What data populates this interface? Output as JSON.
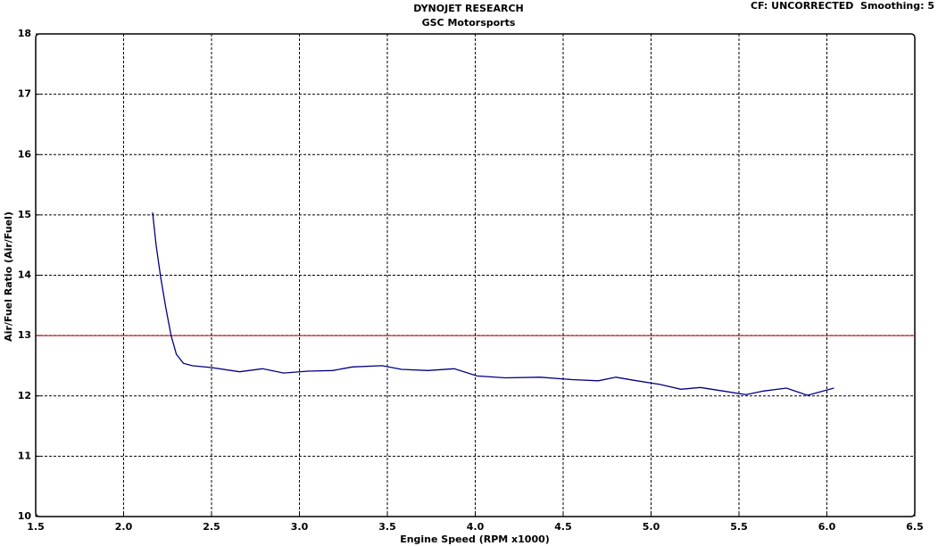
{
  "chart_data": {
    "type": "line",
    "title": "DYNOJET RESEARCH",
    "subtitle": "GSC Motorsports",
    "header_note": "CF: UNCORRECTED  Smoothing: 5",
    "x_label": "Engine Speed (RPM x1000)",
    "y_label": "Air/Fuel Ratio (Air/Fuel)",
    "x": [
      2.165,
      2.185,
      2.21,
      2.24,
      2.27,
      2.3,
      2.34,
      2.39,
      2.5,
      2.66,
      2.79,
      2.91,
      3.05,
      3.19,
      3.3,
      3.47,
      3.58,
      3.73,
      3.88,
      4.01,
      4.17,
      4.37,
      4.55,
      4.7,
      4.8,
      4.9,
      5.05,
      5.17,
      5.28,
      5.41,
      5.54,
      5.64,
      5.77,
      5.89,
      6.04
    ],
    "values": [
      15.04,
      14.5,
      13.98,
      13.46,
      13.0,
      12.69,
      12.54,
      12.5,
      12.47,
      12.4,
      12.45,
      12.38,
      12.41,
      12.42,
      12.48,
      12.5,
      12.44,
      12.42,
      12.45,
      12.33,
      12.3,
      12.31,
      12.27,
      12.25,
      12.31,
      12.26,
      12.19,
      12.11,
      12.14,
      12.08,
      12.02,
      12.08,
      12.13,
      12.01,
      12.13
    ],
    "color": "#000080",
    "reference_line": {
      "value": 13,
      "color": "#c00000"
    },
    "xlim": [
      1.5,
      6.5
    ],
    "xticks": [
      1.5,
      {
        "value": 2,
        "label": "2.0"
      },
      2.5,
      {
        "value": 3,
        "label": "3.0"
      },
      3.5,
      {
        "value": 4,
        "label": "4.0"
      },
      4.5,
      {
        "value": 5,
        "label": "5.0"
      },
      5.5,
      {
        "value": 6,
        "label": "6.0"
      },
      6.5
    ],
    "ylim": [
      10,
      18
    ],
    "yticks": [
      10,
      11,
      12,
      13,
      14,
      15,
      16,
      17,
      18
    ],
    "grid": true
  }
}
